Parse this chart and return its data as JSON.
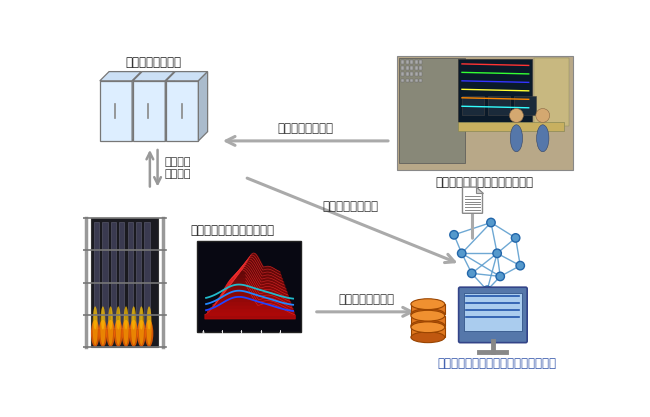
{
  "bg_color": "#ffffff",
  "label_boiler_device": "ボイラー制御装置",
  "label_boiler_auto": "ボイラー\n自動制御",
  "label_control_reflect": "制御設定値に反映",
  "label_control_collect": "制御設定値を収集",
  "label_notify": "最適設定を発電所運転員に通知",
  "label_realtime": "リアルタイムの運転データ",
  "label_collect_data": "運転データを収集",
  "label_system": "ボイラー燃焼調整最適化支援システム",
  "arrow_color": "#aaaaaa",
  "network_color": "#5599cc",
  "font_size_label": 8.5,
  "font_size_system": 8.5,
  "cabinet_face": "#ddeeff",
  "cabinet_side": "#aabbcc",
  "cabinet_top": "#cce0f5"
}
